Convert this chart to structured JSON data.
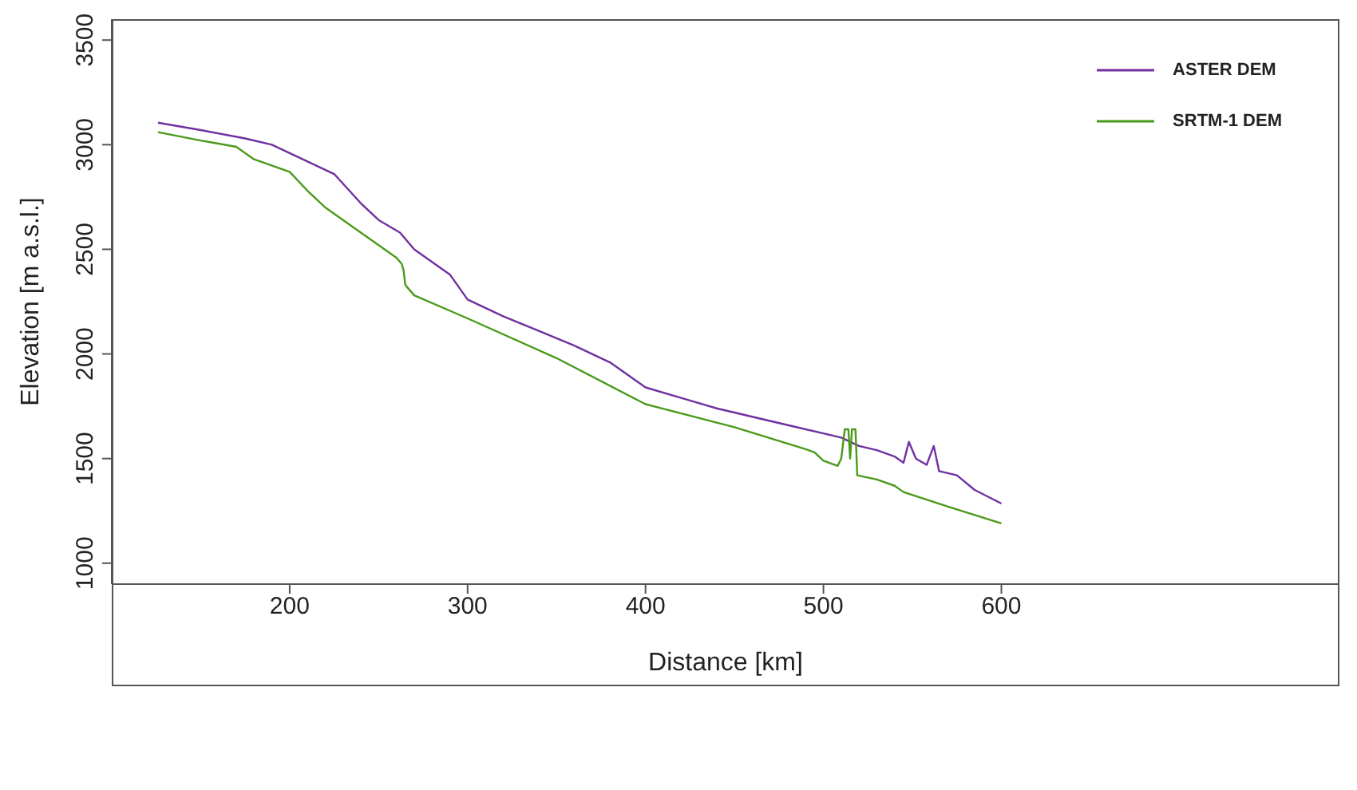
{
  "chart_data": {
    "type": "line",
    "xlabel": "Distance [km]",
    "ylabel": "Elevation [m a.s.l.]",
    "xlim": [
      100,
      790
    ],
    "xticks": [
      200,
      300,
      400,
      500,
      600
    ],
    "ylim": [
      900,
      3600
    ],
    "yticks": [
      1000,
      1500,
      2000,
      2500,
      3000,
      3500
    ],
    "legend": "top right",
    "marker": "none",
    "line_style": "solid",
    "series": [
      {
        "name": "ASTER DEM",
        "color": "#7030a0",
        "x": [
          126,
          150,
          175,
          190,
          200,
          215,
          225,
          240,
          250,
          262,
          270,
          280,
          290,
          300,
          310,
          320,
          340,
          360,
          380,
          400,
          420,
          440,
          460,
          480,
          500,
          510,
          520,
          530,
          540,
          545,
          548,
          552,
          558,
          562,
          565,
          575,
          585,
          600
        ],
        "values": [
          3105,
          3070,
          3030,
          3000,
          2960,
          2900,
          2860,
          2720,
          2640,
          2580,
          2500,
          2440,
          2380,
          2260,
          2220,
          2180,
          2110,
          2040,
          1960,
          1840,
          1790,
          1740,
          1700,
          1660,
          1620,
          1600,
          1560,
          1540,
          1510,
          1480,
          1580,
          1500,
          1470,
          1560,
          1440,
          1420,
          1350,
          1285
        ]
      },
      {
        "name": "SRTM-1 DEM",
        "color": "#4a9a1a",
        "x": [
          126,
          150,
          170,
          180,
          200,
          210,
          220,
          240,
          260,
          263,
          264,
          265,
          270,
          300,
          350,
          400,
          450,
          490,
          495,
          500,
          508,
          510,
          512,
          514,
          515,
          516,
          518,
          519,
          530,
          540,
          545,
          570,
          600
        ],
        "values": [
          3060,
          3020,
          2990,
          2930,
          2870,
          2780,
          2700,
          2580,
          2460,
          2430,
          2400,
          2330,
          2280,
          2170,
          1980,
          1760,
          1650,
          1545,
          1530,
          1490,
          1465,
          1500,
          1640,
          1640,
          1500,
          1640,
          1640,
          1420,
          1400,
          1370,
          1340,
          1270,
          1190
        ]
      }
    ]
  }
}
